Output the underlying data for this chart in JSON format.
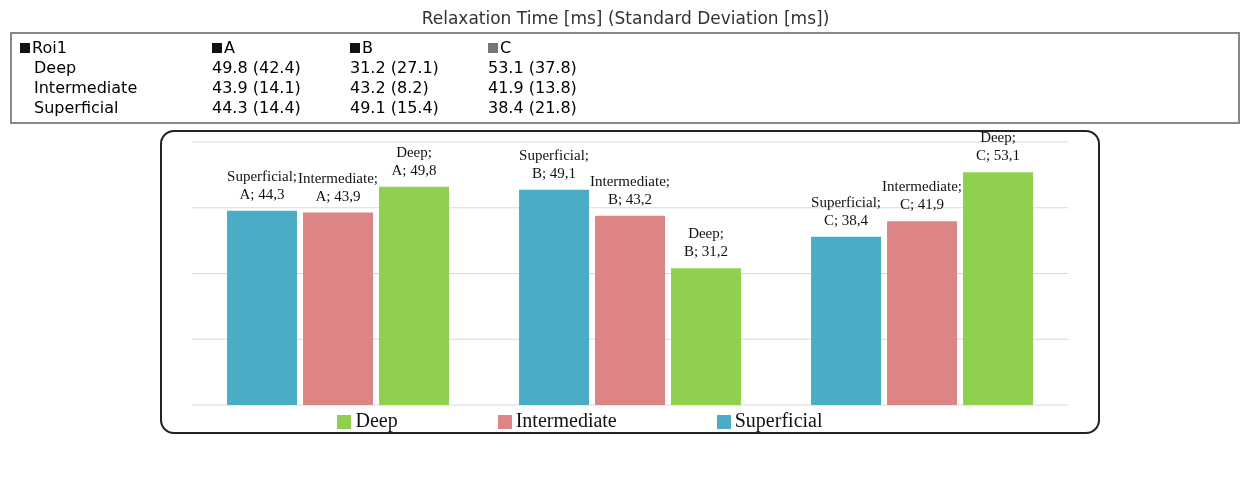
{
  "chart_data": {
    "type": "bar",
    "title": "Relaxation Time [ms] (Standard Deviation [ms])",
    "annotations": [
      "Roi1",
      "A",
      "B",
      "C",
      "Deep",
      "49.8 (42.4)",
      "31.2 (27.1)",
      "53.1 (37.8)",
      "Intermediate",
      "43.9 (14.1)",
      "43.2 (8.2)",
      "41.9 (13.8)",
      "Superficial",
      "44.3 (14.4)",
      "49.1 (15.4)",
      "38.4 (21.8)"
    ],
    "categories": [
      null,
      null,
      null
    ],
    "series": [
      {
        "name": "Superficial",
        "color": "#4bacc6",
        "values": [
          44.3,
          49.1,
          38.4
        ],
        "value_labels": [
          "Superficial; A; 44,3",
          "Superficial; B; 49,1",
          "Superficial; C; 38,4"
        ]
      },
      {
        "name": "Intermediate",
        "color": "#dd8585",
        "values": [
          43.9,
          43.2,
          41.9
        ],
        "value_labels": [
          "Intermediate; A; 43,9",
          "Intermediate; B; 43,2",
          "Intermediate; C; 41,9"
        ]
      },
      {
        "name": "Deep",
        "color": "#8fd14f",
        "values": [
          49.8,
          31.2,
          53.1
        ],
        "value_labels": [
          "Deep; A; 49,8",
          "Deep; B; 31,2",
          "Deep; C; 53,1"
        ]
      }
    ],
    "tick_labels": false,
    "grid": "y",
    "legend": "bottom"
  }
}
